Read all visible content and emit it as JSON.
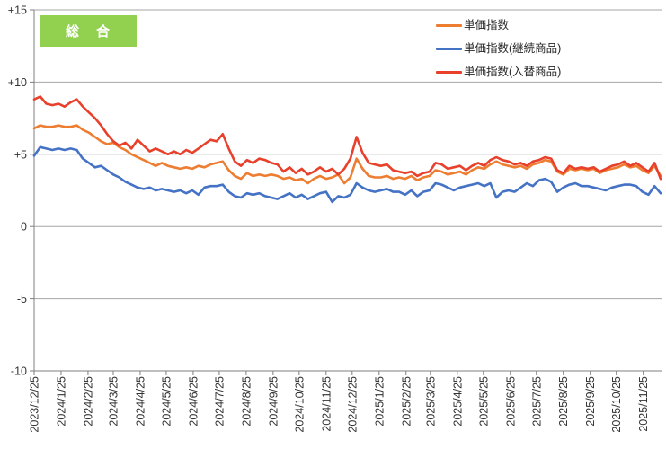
{
  "badge": {
    "label": "総　合",
    "bg_color": "#92d050",
    "text_color": "#ffffff"
  },
  "legend": {
    "items": [
      {
        "key": "unit-price-index",
        "label": "単価指数",
        "color": "#ed7d31"
      },
      {
        "key": "unit-price-index-continuing",
        "label": "単価指数(継続商品)",
        "color": "#4472c4"
      },
      {
        "key": "unit-price-index-replacement",
        "label": "単価指数(入替商品)",
        "color": "#e8402b"
      }
    ]
  },
  "colors": {
    "gridline": "#a6a6a6",
    "axis": "#7f7f7f",
    "tick_text": "#333333",
    "background": "#ffffff"
  },
  "chart_data": {
    "type": "line",
    "title_badge": "総　合",
    "x_start_date": "2023-12-25",
    "x_interval_days": 7,
    "n_points": 104,
    "x_tick_labels": [
      "2023/12/25",
      "2024/1/25",
      "2024/2/25",
      "2024/3/25",
      "2024/4/25",
      "2024/5/25",
      "2024/6/25",
      "2024/7/25",
      "2024/8/25",
      "2024/9/25",
      "2024/10/25",
      "2024/11/25",
      "2024/12/25",
      "2025/1/25",
      "2025/2/25",
      "2025/3/25",
      "2025/4/25",
      "2025/5/25",
      "2025/6/25",
      "2025/7/25",
      "2025/8/25",
      "2025/9/25",
      "2025/10/25",
      "2025/11/25"
    ],
    "y_ticks": [
      {
        "value": 15,
        "label": "+15"
      },
      {
        "value": 10,
        "label": "+10"
      },
      {
        "value": 5,
        "label": "+5"
      },
      {
        "value": 0,
        "label": "0"
      },
      {
        "value": -5,
        "label": "-5"
      },
      {
        "value": -10,
        "label": "-10"
      }
    ],
    "ylim": [
      -10,
      15
    ],
    "grid": true,
    "legend_position": "top-right-inside",
    "series": [
      {
        "key": "unit-price-index",
        "name": "単価指数",
        "color": "#ed7d31",
        "values": [
          6.8,
          7.0,
          6.9,
          6.9,
          7.0,
          6.9,
          6.9,
          7.0,
          6.7,
          6.5,
          6.2,
          5.9,
          5.7,
          5.8,
          5.5,
          5.3,
          5.0,
          4.8,
          4.6,
          4.4,
          4.2,
          4.4,
          4.2,
          4.1,
          4.0,
          4.1,
          4.0,
          4.2,
          4.1,
          4.3,
          4.4,
          4.5,
          3.9,
          3.5,
          3.3,
          3.7,
          3.5,
          3.6,
          3.5,
          3.6,
          3.5,
          3.3,
          3.4,
          3.2,
          3.3,
          3.0,
          3.3,
          3.5,
          3.3,
          3.4,
          3.6,
          3.0,
          3.4,
          4.7,
          4.0,
          3.5,
          3.4,
          3.4,
          3.5,
          3.3,
          3.4,
          3.3,
          3.5,
          3.2,
          3.4,
          3.5,
          3.9,
          3.8,
          3.6,
          3.7,
          3.8,
          3.6,
          3.9,
          4.1,
          4.0,
          4.3,
          4.5,
          4.3,
          4.2,
          4.1,
          4.2,
          4.0,
          4.3,
          4.4,
          4.6,
          4.5,
          3.8,
          3.6,
          4.0,
          3.9,
          4.0,
          3.9,
          4.0,
          3.7,
          3.9,
          4.0,
          4.1,
          4.3,
          4.1,
          4.2,
          3.9,
          3.7,
          4.2,
          3.5
        ]
      },
      {
        "key": "unit-price-index-continuing",
        "name": "単価指数(継続商品)",
        "color": "#4472c4",
        "values": [
          4.9,
          5.5,
          5.4,
          5.3,
          5.4,
          5.3,
          5.4,
          5.3,
          4.7,
          4.4,
          4.1,
          4.2,
          3.9,
          3.6,
          3.4,
          3.1,
          2.9,
          2.7,
          2.6,
          2.7,
          2.5,
          2.6,
          2.5,
          2.4,
          2.5,
          2.3,
          2.5,
          2.2,
          2.7,
          2.8,
          2.8,
          2.9,
          2.4,
          2.1,
          2.0,
          2.3,
          2.2,
          2.3,
          2.1,
          2.0,
          1.9,
          2.1,
          2.3,
          2.0,
          2.2,
          1.9,
          2.1,
          2.3,
          2.4,
          1.7,
          2.1,
          2.0,
          2.2,
          3.0,
          2.7,
          2.5,
          2.4,
          2.5,
          2.6,
          2.4,
          2.4,
          2.2,
          2.5,
          2.1,
          2.4,
          2.5,
          3.0,
          2.9,
          2.7,
          2.5,
          2.7,
          2.8,
          2.9,
          3.0,
          2.8,
          3.0,
          2.0,
          2.4,
          2.5,
          2.4,
          2.7,
          3.0,
          2.8,
          3.2,
          3.3,
          3.1,
          2.4,
          2.7,
          2.9,
          3.0,
          2.8,
          2.8,
          2.7,
          2.6,
          2.5,
          2.7,
          2.8,
          2.9,
          2.9,
          2.8,
          2.4,
          2.2,
          2.8,
          2.3
        ]
      },
      {
        "key": "unit-price-index-replacement",
        "name": "単価指数(入替商品)",
        "color": "#e8402b",
        "values": [
          8.8,
          9.0,
          8.5,
          8.4,
          8.5,
          8.3,
          8.6,
          8.8,
          8.3,
          7.9,
          7.5,
          7.0,
          6.4,
          5.9,
          5.6,
          5.8,
          5.4,
          6.0,
          5.6,
          5.2,
          5.4,
          5.2,
          5.0,
          5.2,
          5.0,
          5.3,
          5.1,
          5.4,
          5.7,
          6.0,
          5.9,
          6.4,
          5.4,
          4.5,
          4.2,
          4.6,
          4.4,
          4.7,
          4.6,
          4.4,
          4.3,
          3.8,
          4.1,
          3.7,
          4.0,
          3.6,
          3.8,
          4.1,
          3.8,
          4.0,
          3.6,
          4.0,
          4.7,
          6.2,
          5.1,
          4.4,
          4.3,
          4.2,
          4.3,
          3.9,
          3.8,
          3.7,
          3.8,
          3.5,
          3.7,
          3.8,
          4.4,
          4.3,
          4.0,
          4.1,
          4.2,
          3.9,
          4.2,
          4.4,
          4.2,
          4.6,
          4.8,
          4.6,
          4.5,
          4.3,
          4.4,
          4.2,
          4.5,
          4.6,
          4.8,
          4.7,
          3.9,
          3.7,
          4.2,
          4.0,
          4.1,
          4.0,
          4.1,
          3.8,
          4.0,
          4.2,
          4.3,
          4.5,
          4.2,
          4.4,
          4.1,
          3.8,
          4.4,
          3.3
        ]
      }
    ]
  }
}
